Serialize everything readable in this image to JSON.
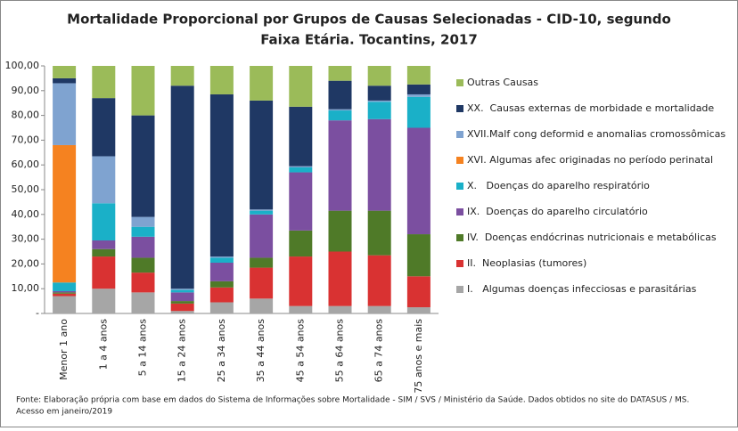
{
  "chart_data": {
    "type": "stacked_bar",
    "title": [
      "Mortalidade Proporcional por Grupos de Causas Selecionadas - CID-10, segundo",
      "Faixa Etária. Tocantins, 2017"
    ],
    "source": [
      "Fonte: Elaboração própria com base em dados do  Sistema de Informações sobre Mortalidade - SIM / SVS / Ministério da Saúde. Dados obtidos no site do DATASUS / MS.",
      "Acesso em janeiro/2019"
    ],
    "categories": [
      "Menor 1 ano",
      "1 a 4 anos",
      "5 a 14 anos",
      "15 a 24 anos",
      "25 a 34 anos",
      "35 a 44 anos",
      "45 a 54 anos",
      "55 a 64 anos",
      "65 a 74 anos",
      "75 anos e mais"
    ],
    "series": [
      {
        "name": "I.   Algumas doenças infecciosas e parasitárias",
        "color": "#a6a6a6",
        "values": [
          7,
          10,
          8.5,
          1,
          4.5,
          6,
          3,
          3,
          3,
          2.5
        ]
      },
      {
        "name": "II.  Neoplasias (tumores)",
        "color": "#d93232",
        "values": [
          1,
          13,
          8,
          3,
          6,
          12.5,
          20,
          22,
          20.5,
          12.5
        ]
      },
      {
        "name": "IV.  Doenças endócrinas nutricionais e metabólicas",
        "color": "#4f7a28",
        "values": [
          0.5,
          3,
          6,
          1,
          2.5,
          4,
          10.5,
          16.5,
          18,
          17
        ]
      },
      {
        "name": "IX.  Doenças do aparelho circulatório",
        "color": "#7b4fa0",
        "values": [
          0.5,
          3.5,
          8.5,
          3.5,
          7.5,
          17.5,
          23.5,
          36.5,
          37,
          43
        ]
      },
      {
        "name": "X.   Doenças do aparelho respiratório",
        "color": "#1ab0c8",
        "values": [
          3.5,
          15,
          4,
          1,
          2,
          1.5,
          2,
          4,
          7,
          12.5
        ]
      },
      {
        "name": "XVI. Algumas afec originadas no período perinatal",
        "color": "#f58220",
        "values": [
          55.5,
          0,
          0,
          0,
          0,
          0,
          0,
          0,
          0,
          0
        ]
      },
      {
        "name": "XVII.Malf cong deformid e anomalias cromossômicas",
        "color": "#7fa3d0",
        "values": [
          25,
          19,
          4,
          0.5,
          0.5,
          0.5,
          0.5,
          0.5,
          0.5,
          1
        ]
      },
      {
        "name": "XX.  Causas externas de morbidade e mortalidade",
        "color": "#1f3864",
        "values": [
          2,
          23.5,
          41,
          82,
          65.5,
          44,
          24,
          11.5,
          6,
          4
        ]
      },
      {
        "name": "Outras Causas",
        "color": "#9bbb59",
        "values": [
          5,
          13,
          20,
          8,
          11.5,
          14,
          16.5,
          6,
          8,
          7.5
        ]
      }
    ],
    "ylim": [
      0,
      100
    ],
    "yticks": [
      {
        "value": 0,
        "label": "-"
      },
      {
        "value": 10,
        "label": "10,00"
      },
      {
        "value": 20,
        "label": "20,00"
      },
      {
        "value": 30,
        "label": "30,00"
      },
      {
        "value": 40,
        "label": "40,00"
      },
      {
        "value": 50,
        "label": "50,00"
      },
      {
        "value": 60,
        "label": "60,00"
      },
      {
        "value": 70,
        "label": "70,00"
      },
      {
        "value": 80,
        "label": "80,00"
      },
      {
        "value": 90,
        "label": "90,00"
      },
      {
        "value": 100,
        "label": "100,00"
      }
    ],
    "legend": "right"
  }
}
